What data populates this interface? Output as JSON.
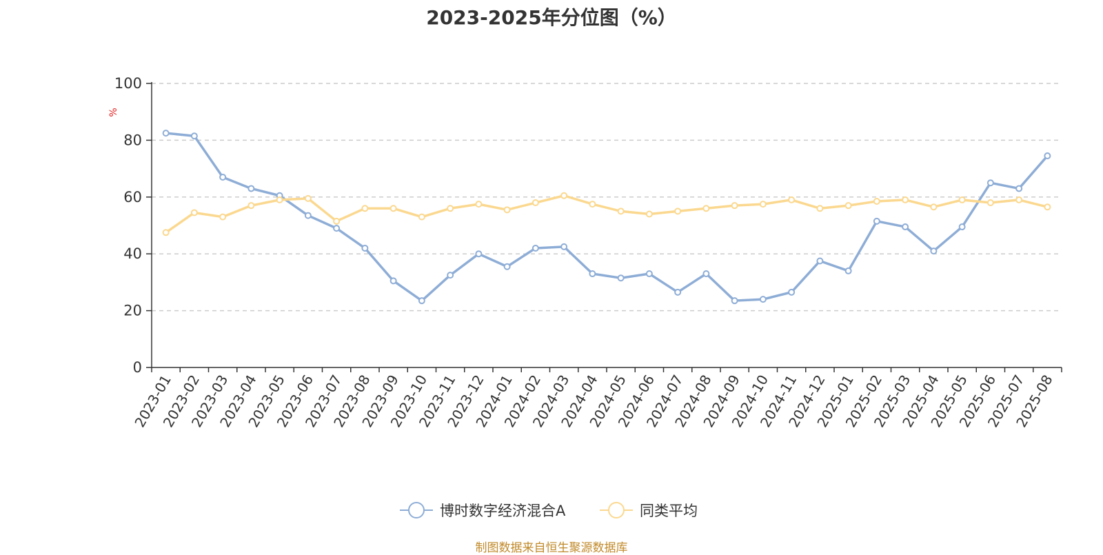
{
  "chart_data": {
    "type": "line",
    "title": "2023-2025年分位图（%）",
    "ylabel": "%",
    "ylim": [
      0,
      100
    ],
    "yticks": [
      0,
      20,
      40,
      60,
      80,
      100
    ],
    "grid": true,
    "legend_position": "bottom-center",
    "x": [
      "2023-01",
      "2023-02",
      "2023-03",
      "2023-04",
      "2023-05",
      "2023-06",
      "2023-07",
      "2023-08",
      "2023-09",
      "2023-10",
      "2023-11",
      "2023-12",
      "2024-01",
      "2024-02",
      "2024-03",
      "2024-04",
      "2024-05",
      "2024-06",
      "2024-07",
      "2024-08",
      "2024-09",
      "2024-10",
      "2024-11",
      "2024-12",
      "2025-01",
      "2025-02",
      "2025-03",
      "2025-04",
      "2025-05",
      "2025-06",
      "2025-07",
      "2025-08"
    ],
    "series": [
      {
        "name": "博时数字经济混合A",
        "color": "#8eadd6",
        "values": [
          82.5,
          81.5,
          67,
          63,
          60.5,
          53.5,
          49,
          42,
          30.5,
          23.5,
          32.5,
          40,
          35.5,
          42,
          42.5,
          33,
          31.5,
          33,
          26.5,
          33,
          23.5,
          24,
          26.5,
          37.5,
          34,
          51.5,
          49.5,
          41,
          49.5,
          65,
          63,
          74.5
        ]
      },
      {
        "name": "同类平均",
        "color": "#fbd88f",
        "values": [
          47.5,
          54.5,
          53,
          57,
          59,
          59.5,
          51.5,
          56,
          56,
          53,
          56,
          57.5,
          55.5,
          58,
          60.5,
          57.5,
          55,
          54,
          55,
          56,
          57,
          57.5,
          59,
          56,
          57,
          58.5,
          59,
          56.5,
          59,
          58,
          59,
          56.5
        ]
      }
    ]
  },
  "source": "制图数据来自恒生聚源数据库"
}
